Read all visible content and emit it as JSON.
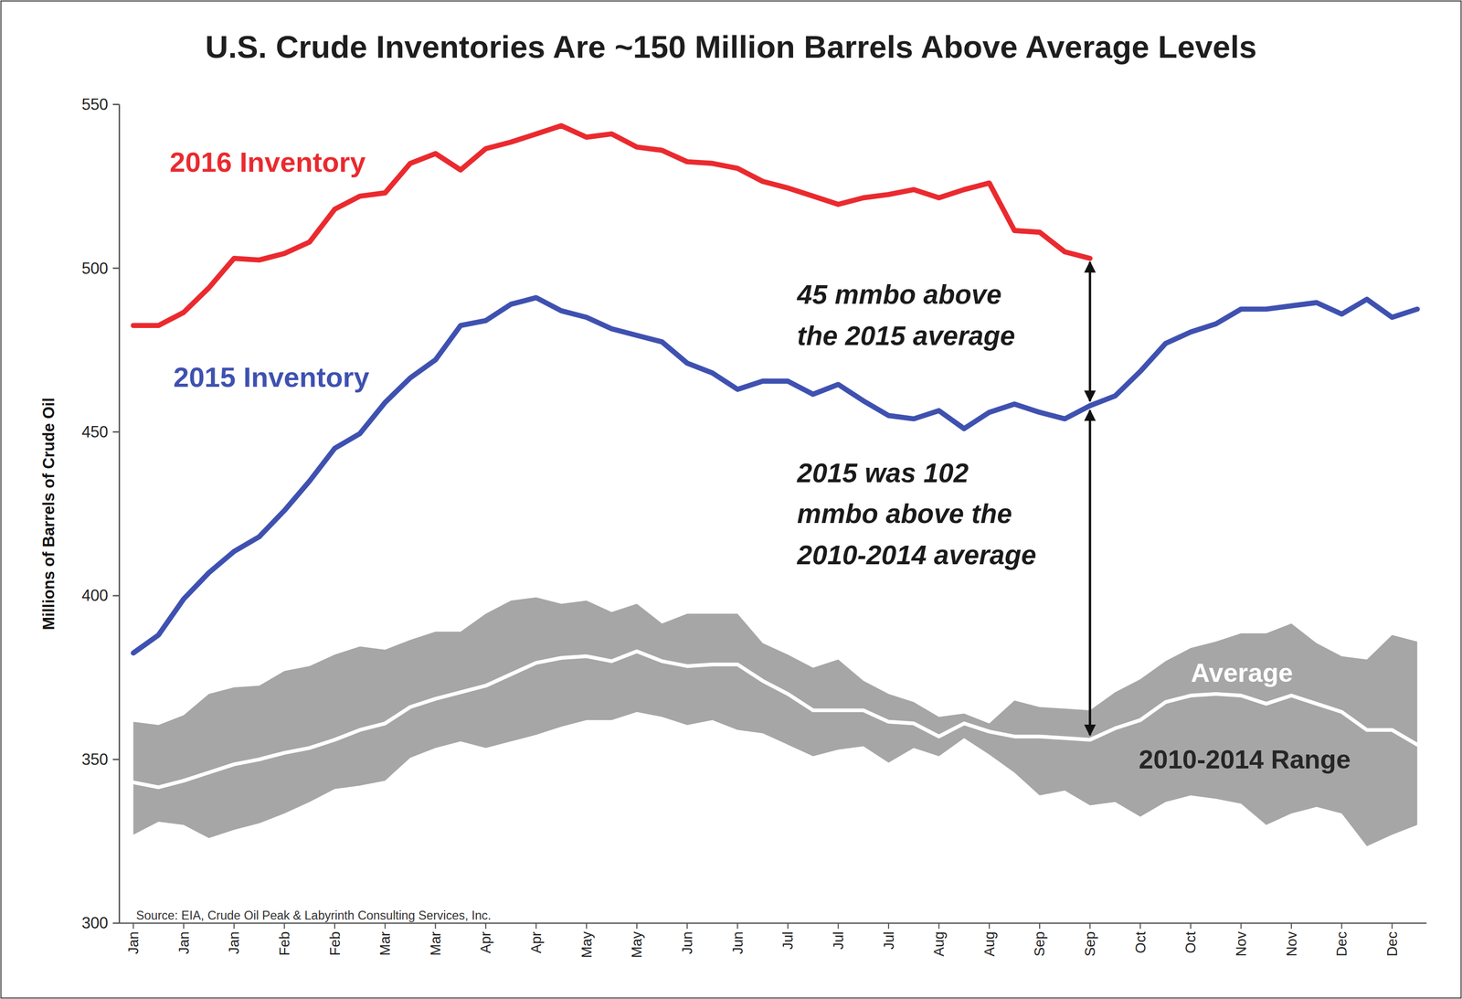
{
  "chart_data": {
    "type": "line",
    "title": "U.S. Crude Inventories Are ~150 Million Barrels Above Average Levels",
    "y_label": "Millions of Barrels of Crude Oil",
    "source": "Source:  EIA, Crude Oil Peak  & Labyrinth Consulting Services, Inc.",
    "categories": [
      "Jan",
      null,
      "Jan",
      null,
      "Jan",
      null,
      "Feb",
      null,
      "Feb",
      null,
      "Mar",
      null,
      "Mar",
      null,
      "Apr",
      null,
      "Apr",
      null,
      "May",
      null,
      "May",
      null,
      "Jun",
      null,
      "Jun",
      null,
      "Jul",
      null,
      "Jul",
      null,
      "Jul",
      null,
      "Aug",
      null,
      "Aug",
      null,
      "Sep",
      null,
      "Sep",
      null,
      "Oct",
      null,
      "Oct",
      null,
      "Nov",
      null,
      "Nov",
      null,
      "Dec",
      null,
      "Dec",
      null
    ],
    "ylim": [
      300,
      550
    ],
    "yticks": [
      300,
      350,
      400,
      450,
      500,
      550
    ],
    "grid": false,
    "series": [
      {
        "name": "2016 Inventory",
        "type": "line",
        "color": "#ea2a2f",
        "values": [
          482.5,
          482.5,
          486.5,
          494,
          503,
          502.5,
          504.5,
          508,
          518,
          522,
          523,
          532,
          535,
          530,
          536.5,
          538.5,
          541,
          543.5,
          540,
          541,
          537,
          536,
          532.5,
          532,
          530.5,
          526.5,
          524.5,
          522,
          519.5,
          521.5,
          522.5,
          524,
          521.5,
          524,
          526,
          511.5,
          511,
          505,
          503,
          null,
          null,
          null,
          null,
          null,
          null,
          null,
          null,
          null,
          null,
          null,
          null,
          null
        ]
      },
      {
        "name": "2015 Inventory",
        "type": "line",
        "color": "#3f51b0",
        "values": [
          382.5,
          388,
          399,
          407,
          413.5,
          418,
          426,
          435,
          445,
          449.5,
          459,
          466.5,
          472,
          482.5,
          484,
          489,
          491,
          487,
          485,
          481.5,
          479.5,
          477.5,
          471,
          468,
          463,
          465.5,
          465.5,
          461.5,
          464.5,
          459.5,
          455,
          454,
          456.5,
          451,
          456,
          458.5,
          456,
          454,
          458,
          461,
          468.5,
          477,
          480.5,
          483,
          487.5,
          487.5,
          488.5,
          489.5,
          486,
          490.5,
          485,
          487.5
        ]
      },
      {
        "name": "Average",
        "type": "line",
        "color": "#ffffff",
        "values": [
          343,
          341.5,
          343.5,
          346,
          348.5,
          350,
          352,
          353.5,
          356,
          359,
          361,
          366,
          368.5,
          370.5,
          372.5,
          376,
          379.5,
          381,
          381.5,
          380,
          383,
          380,
          378.5,
          379,
          379,
          374,
          370,
          365,
          365,
          365,
          361.5,
          361,
          357,
          361,
          358.5,
          357,
          357,
          356.5,
          356,
          359.5,
          362,
          367.5,
          369.5,
          370,
          369.5,
          367,
          369.5,
          367,
          364.5,
          359,
          359,
          354.5
        ]
      },
      {
        "name": "2010-2014 Range",
        "type": "band",
        "color": "#a6a6a6",
        "values": [
          361.5,
          360.5,
          363.5,
          370,
          372,
          372.5,
          377,
          378.5,
          382,
          384.5,
          383.5,
          386.5,
          389,
          389,
          394.5,
          398.5,
          399.5,
          397.5,
          398.5,
          395,
          397.5,
          391.5,
          394.5,
          394.5,
          394.5,
          385.5,
          382,
          378,
          380.5,
          374,
          370,
          367.5,
          363,
          364,
          361,
          368,
          366,
          365.5,
          365,
          370.5,
          374.5,
          380,
          384,
          386,
          388.5,
          388.5,
          391.5,
          385.5,
          381.5,
          380.5,
          388,
          386
        ],
        "lower": [
          327,
          331,
          330,
          326,
          328.5,
          330.5,
          333.5,
          337,
          341,
          342,
          343.5,
          350.5,
          353.5,
          355.5,
          353.5,
          355.5,
          357.5,
          360,
          362,
          362,
          364.5,
          363,
          360.5,
          362,
          359,
          358,
          354.5,
          351,
          353,
          354,
          349,
          353.5,
          351,
          356.5,
          351.5,
          346,
          339,
          340.5,
          336,
          337,
          332.5,
          337,
          339,
          338,
          336.5,
          330,
          333.5,
          335.5,
          333.5,
          323.5,
          327,
          330
        ]
      }
    ],
    "annotations": [
      [
        "45 mmbo above",
        "the 2015 average"
      ],
      [
        "2015 was 102",
        "mmbo above the",
        "2010-2014 average"
      ]
    ]
  }
}
